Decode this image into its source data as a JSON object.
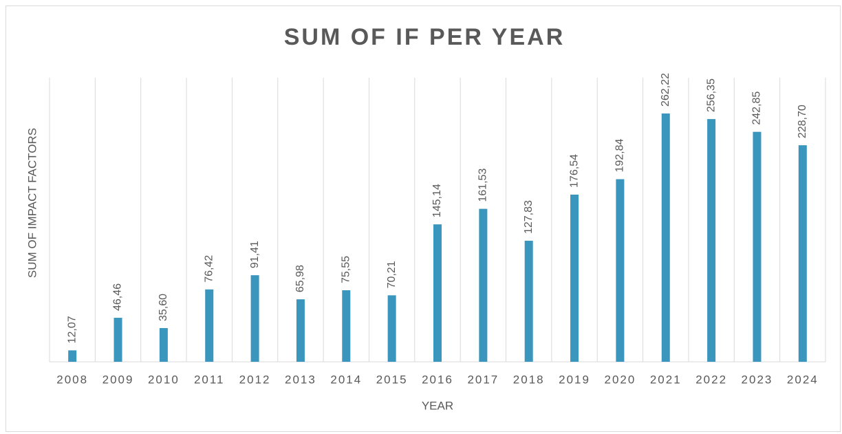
{
  "chart_data": {
    "type": "bar",
    "title": "SUM OF IF PER YEAR",
    "x_label": "YEAR",
    "y_label": "SUM OF IMPACT FACTORS",
    "categories": [
      "2008",
      "2009",
      "2010",
      "2011",
      "2012",
      "2013",
      "2014",
      "2015",
      "2016",
      "2017",
      "2018",
      "2019",
      "2020",
      "2021",
      "2022",
      "2023",
      "2024"
    ],
    "values": [
      12.07,
      46.46,
      35.6,
      76.42,
      91.41,
      65.98,
      75.55,
      70.21,
      145.14,
      161.53,
      127.83,
      176.54,
      192.84,
      262.22,
      256.35,
      242.85,
      228.7
    ],
    "value_labels": [
      "12,07",
      "46,46",
      "35,60",
      "76,42",
      "91,41",
      "65,98",
      "75,55",
      "70,21",
      "145,14",
      "161,53",
      "127,83",
      "176,54",
      "192,84",
      "262,22",
      "256,35",
      "242,85",
      "228,70"
    ],
    "color": "#3a96bd",
    "ylim": [
      0,
      300
    ]
  }
}
